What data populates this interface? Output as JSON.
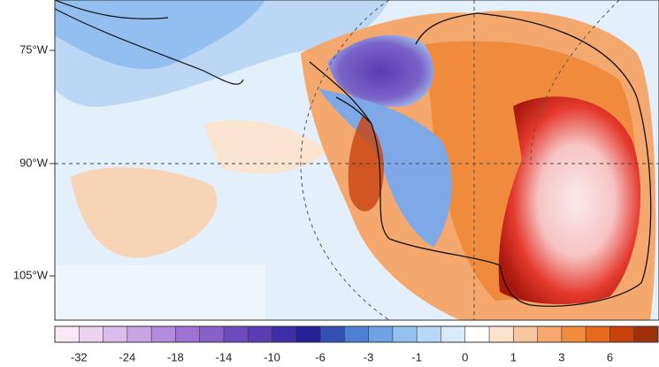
{
  "map": {
    "lat_labels": [
      "75°W",
      "90°W",
      "105°W"
    ]
  },
  "colorbar": {
    "colors": [
      "#f7e8f4",
      "#ecd2ee",
      "#dcbcea",
      "#c9a3e4",
      "#b48bdc",
      "#9e72d2",
      "#8860c8",
      "#6f4cbd",
      "#5a3db3",
      "#3e2fa8",
      "#241f95",
      "#3350b5",
      "#4c7fd0",
      "#6ea3e3",
      "#92c0ef",
      "#b7d8f6",
      "#d9ebfa",
      "#ffffff",
      "#fbe2cc",
      "#f8c69e",
      "#f5a86e",
      "#f08b3e",
      "#e8691c",
      "#c9410f",
      "#a0300a"
    ],
    "labels": [
      -32,
      -24,
      -18,
      -14,
      -10,
      -6,
      -3,
      -1,
      0,
      1,
      3,
      6
    ]
  }
}
